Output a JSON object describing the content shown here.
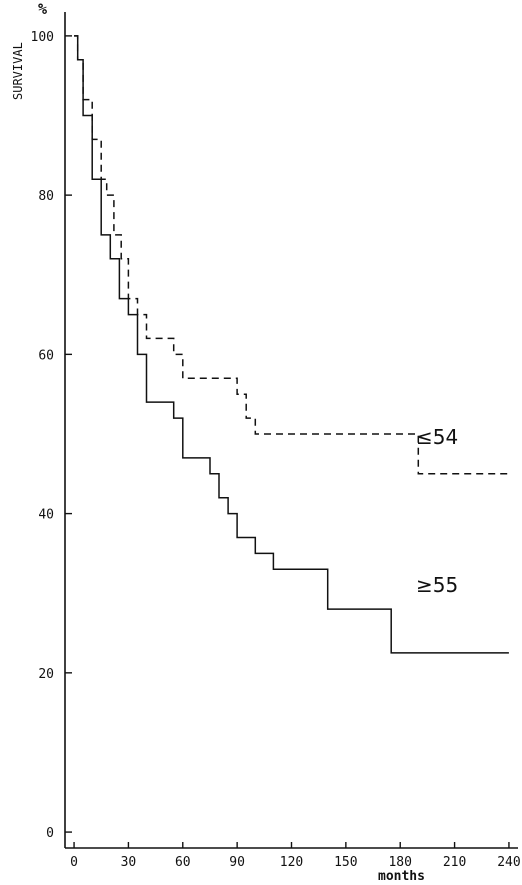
{
  "chart_data": {
    "type": "line",
    "title": "",
    "ylabel": "SURVIVAL",
    "yunit": "%",
    "xlabel": "months",
    "xlim": [
      -5,
      245
    ],
    "ylim": [
      -2,
      103
    ],
    "xticks": [
      0,
      30,
      60,
      90,
      120,
      150,
      180,
      210,
      240
    ],
    "yticks": [
      0,
      20,
      40,
      60,
      80,
      100
    ],
    "grid": false,
    "step": true,
    "series": [
      {
        "name": "≤54",
        "style": "dashed",
        "color": "#111111",
        "x": [
          0,
          2,
          5,
          10,
          15,
          18,
          22,
          26,
          30,
          35,
          40,
          55,
          60,
          90,
          95,
          100,
          105,
          190,
          240
        ],
        "y": [
          100,
          97,
          92,
          87,
          82,
          80,
          75,
          72,
          67,
          65,
          62,
          60,
          57,
          55,
          52,
          50,
          50,
          45,
          45
        ]
      },
      {
        "name": "≥55",
        "style": "solid",
        "color": "#111111",
        "x": [
          0,
          2,
          5,
          10,
          15,
          20,
          25,
          30,
          35,
          40,
          55,
          60,
          75,
          80,
          85,
          90,
          100,
          110,
          140,
          175,
          240
        ],
        "y": [
          100,
          97,
          90,
          82,
          75,
          72,
          67,
          65,
          60,
          54,
          52,
          47,
          45,
          42,
          40,
          37,
          35,
          33,
          28,
          22.5,
          22.5
        ]
      }
    ]
  }
}
